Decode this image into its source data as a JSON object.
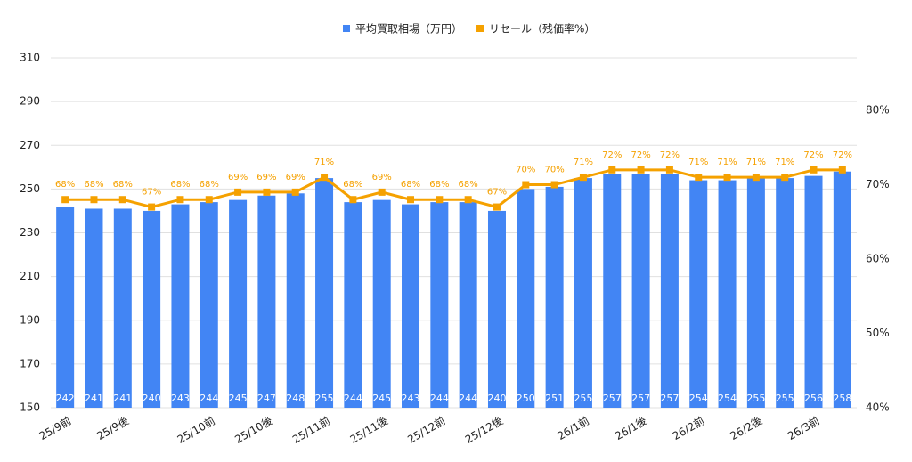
{
  "chart_data": {
    "type": "bar_line",
    "categories": [
      "25/9前",
      null,
      "25/9後",
      null,
      null,
      "25/10前",
      null,
      "25/10後",
      null,
      "25/11前",
      null,
      "25/11後",
      null,
      "25/12前",
      null,
      "25/12後",
      null,
      null,
      "26/1前",
      null,
      "26/1後",
      null,
      "26/2前",
      null,
      "26/2後",
      null,
      "26/3前",
      null
    ],
    "series": [
      {
        "name": "平均買取相場（万円）",
        "color": "#4285f4",
        "type": "bar",
        "values": [
          242,
          241,
          241,
          240,
          243,
          244,
          245,
          247,
          248,
          255,
          244,
          245,
          243,
          244,
          244,
          240,
          250,
          251,
          255,
          257,
          257,
          257,
          254,
          254,
          255,
          255,
          256,
          258
        ]
      },
      {
        "name": "リセール（残価率%）",
        "color": "#f5a100",
        "type": "line",
        "axis": "y2",
        "values": [
          68,
          68,
          68,
          67,
          68,
          68,
          69,
          69,
          69,
          71,
          68,
          69,
          68,
          68,
          68,
          67,
          70,
          70,
          71,
          72,
          72,
          72,
          71,
          71,
          71,
          71,
          72,
          72
        ],
        "value_labels": [
          "68%",
          "68%",
          "68%",
          "67%",
          "68%",
          "68%",
          "69%",
          "69%",
          "69%",
          "71%",
          "68%",
          "69%",
          "68%",
          "68%",
          "68%",
          "67%",
          "70%",
          "70%",
          "71%",
          "72%",
          "72%",
          "72%",
          "71%",
          "71%",
          "71%",
          "71%",
          "72%",
          "72%"
        ]
      }
    ],
    "ylim": [
      150,
      310
    ],
    "yticks": [
      150,
      170,
      190,
      210,
      230,
      250,
      270,
      290,
      310
    ],
    "y2lim": [
      40,
      87.07
    ],
    "y2ticks": [
      {
        "value": 40,
        "label": "40%"
      },
      {
        "value": 50,
        "label": "50%"
      },
      {
        "value": 60,
        "label": "60%"
      },
      {
        "value": 70,
        "label": "70%"
      },
      {
        "value": 80,
        "label": "80%"
      }
    ],
    "grid": true,
    "legend": "top"
  }
}
